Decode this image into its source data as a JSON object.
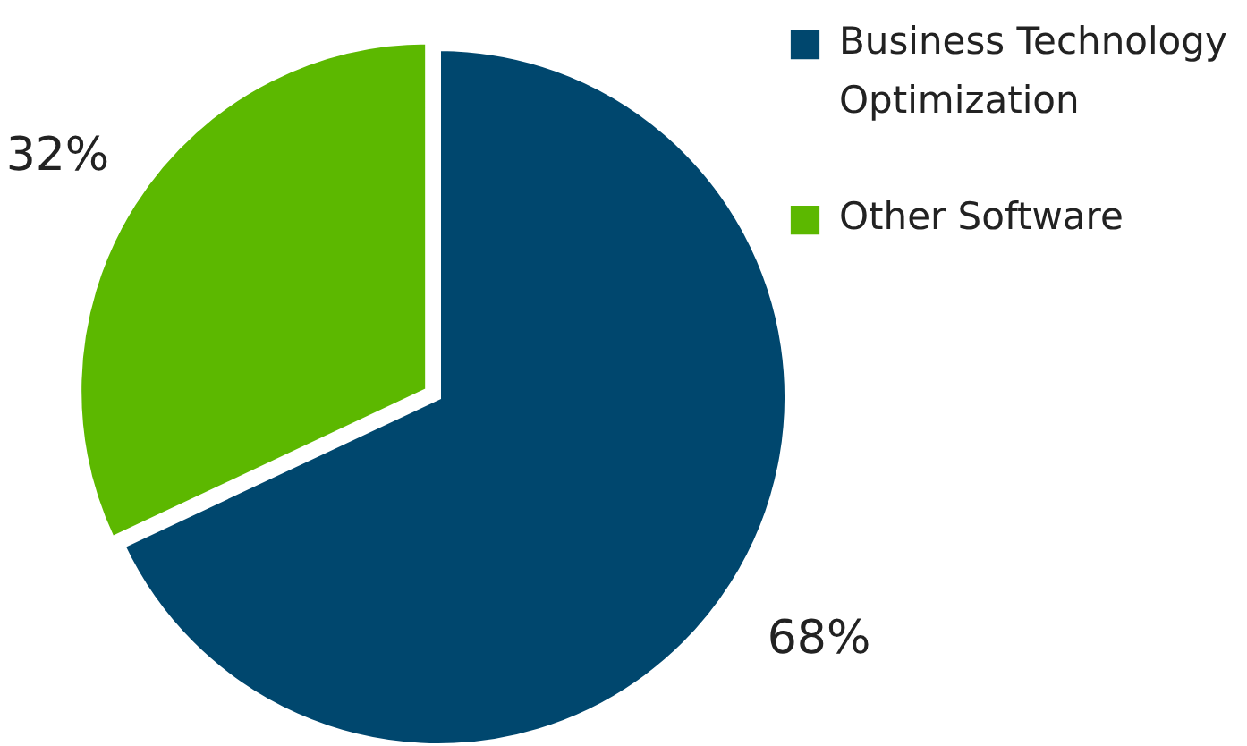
{
  "chart_data": {
    "type": "pie",
    "categories": [
      "Business Technology Optimization",
      "Other Software"
    ],
    "values": [
      68,
      32
    ],
    "colors": [
      "#00476e",
      "#5cb800"
    ],
    "value_labels": [
      "68%",
      "32%"
    ],
    "legend": "top right"
  }
}
